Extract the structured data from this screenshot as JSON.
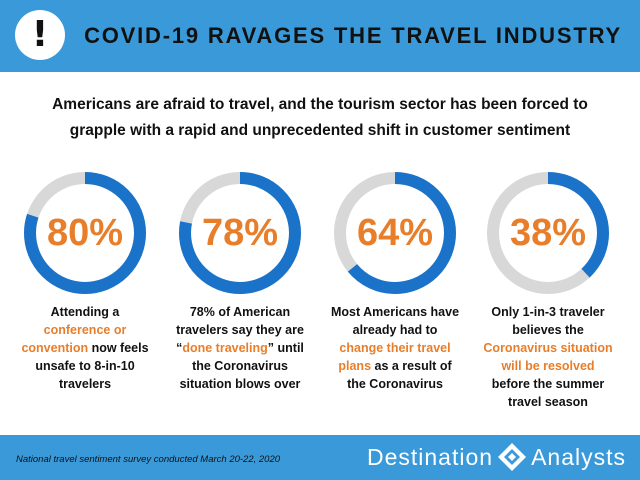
{
  "header": {
    "icon": "exclamation-icon",
    "alert_glyph": "!",
    "title": "COVID-19 RAVAGES THE TRAVEL INDUSTRY"
  },
  "intro": "Americans are afraid to travel, and the tourism sector has been forced to grapple with a rapid and unprecedented shift in customer sentiment",
  "colors": {
    "bar": "#3a9ad9",
    "ring_fill": "#1a73c9",
    "ring_track": "#d8d8d8",
    "highlight": "#e87e2a"
  },
  "stats": [
    {
      "value": "80%",
      "percent": 80,
      "text": [
        {
          "t": "Attending a "
        },
        {
          "t": "conference or convention",
          "hl": true
        },
        {
          "t": " now feels unsafe to 8-in-10 travelers"
        }
      ]
    },
    {
      "value": "78%",
      "percent": 78,
      "text": [
        {
          "t": "78% of American travelers say they are “"
        },
        {
          "t": "done traveling",
          "hl": true
        },
        {
          "t": "” until the Coronavirus situation blows over"
        }
      ]
    },
    {
      "value": "64%",
      "percent": 64,
      "text": [
        {
          "t": "Most Americans have already had to "
        },
        {
          "t": "change their travel plans",
          "hl": true
        },
        {
          "t": " as a result of the Coronavirus"
        }
      ]
    },
    {
      "value": "38%",
      "percent": 38,
      "text": [
        {
          "t": "Only 1-in-3 traveler believes the "
        },
        {
          "t": "Coronavirus situation will be resolved",
          "hl": true
        },
        {
          "t": " before the summer travel season"
        }
      ]
    }
  ],
  "footer": {
    "note": "National travel sentiment survey conducted March 20-22, 2020",
    "brand_left": "Destination",
    "brand_right": "Analysts",
    "brand_icon": "compass-diamond-icon"
  }
}
